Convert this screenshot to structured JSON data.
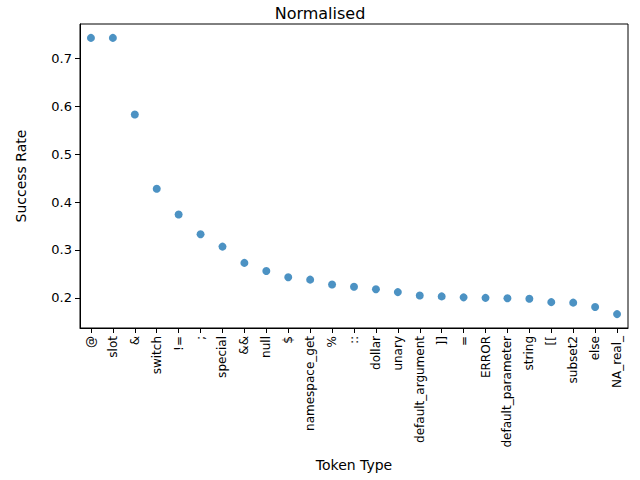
{
  "chart_data": {
    "type": "scatter",
    "title": "Normalised",
    "x_label": "Token Type",
    "y_label": "Success Rate",
    "categories": [
      "@",
      "slot",
      "&",
      "switch",
      "!=",
      ";",
      "special",
      "&&",
      "null",
      "$",
      "namespace_get",
      "%",
      "::",
      "dollar",
      "unary",
      "default_argument",
      "]]",
      "=",
      "ERROR",
      "default_parameter",
      "string",
      "[[",
      "subset2",
      "else",
      "NA_real_"
    ],
    "values": [
      0.743,
      0.743,
      0.583,
      0.428,
      0.374,
      0.333,
      0.307,
      0.273,
      0.256,
      0.243,
      0.238,
      0.228,
      0.223,
      0.218,
      0.212,
      0.205,
      0.203,
      0.201,
      0.2,
      0.199,
      0.198,
      0.191,
      0.19,
      0.181,
      0.166
    ],
    "color": "#1f77b4",
    "marker": "circle",
    "ylim": [
      0.137,
      0.772
    ],
    "yticks": [
      0.2,
      0.3,
      0.4,
      0.5,
      0.6,
      0.7
    ],
    "grid": false
  }
}
